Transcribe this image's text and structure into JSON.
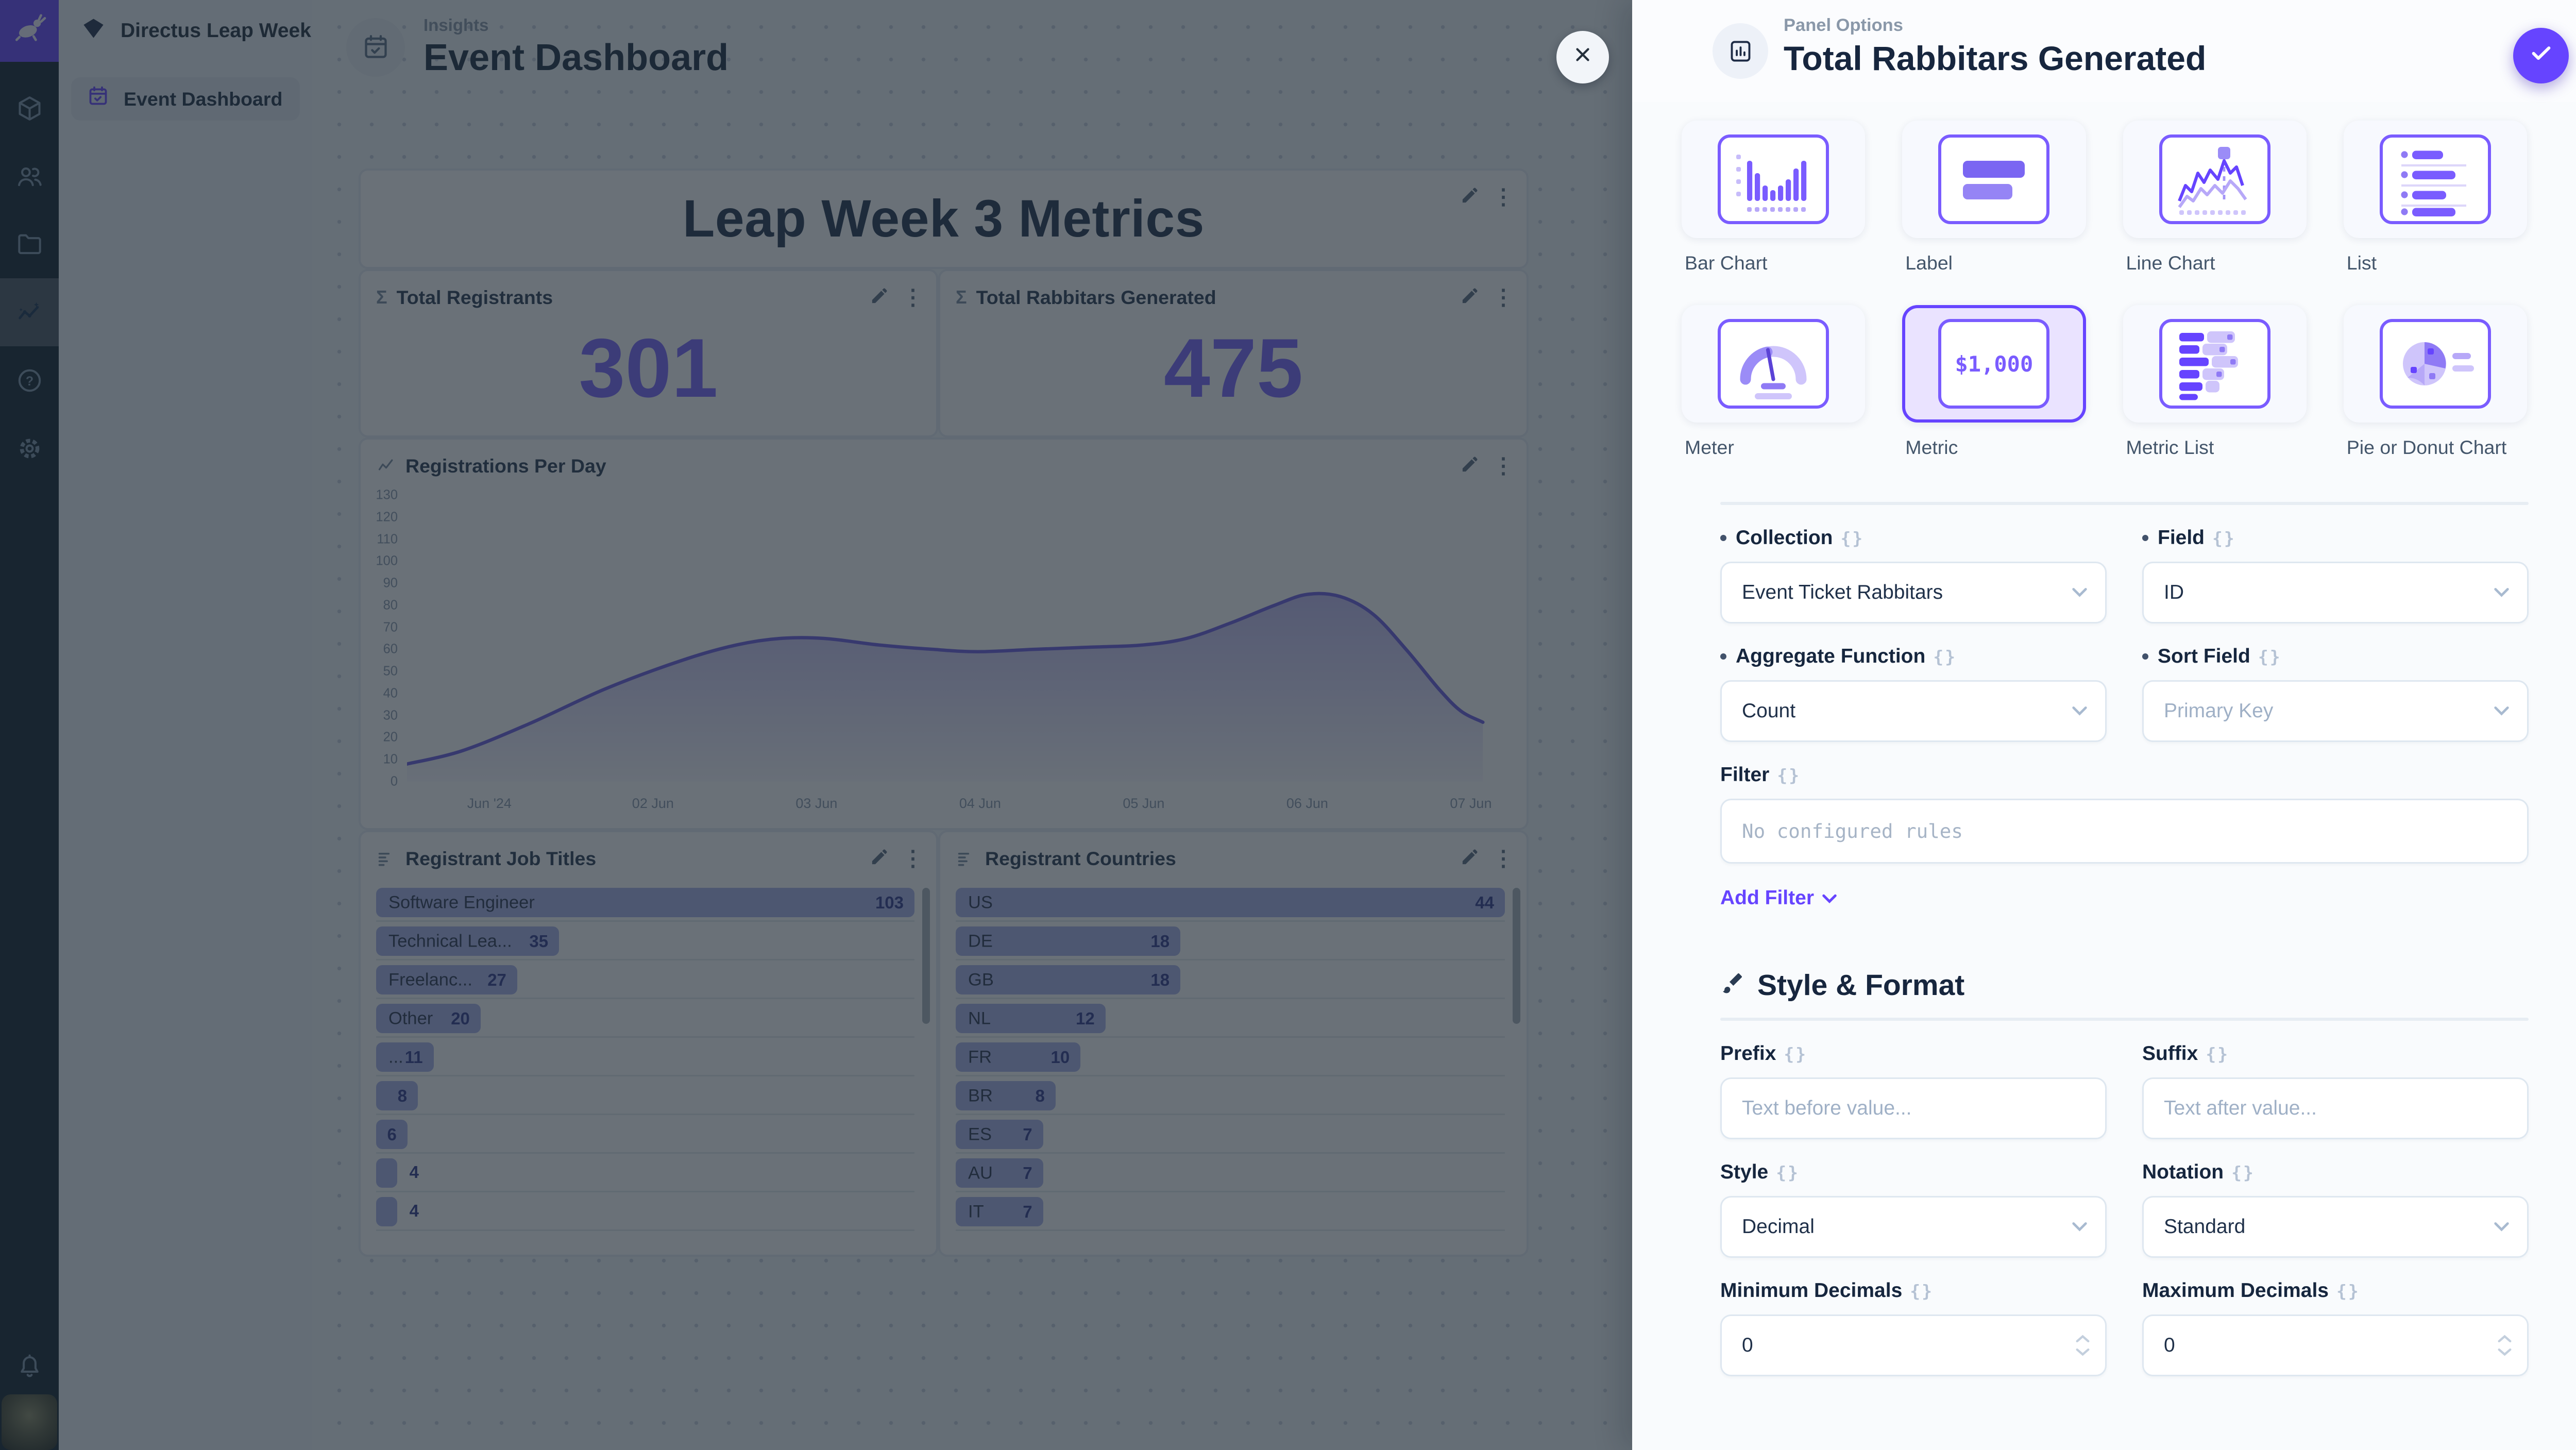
{
  "colors": {
    "primary": "#6644ff",
    "metric_text": "#7a63ff",
    "chart_line": "#6a5ce0",
    "bar_fill": "#aab3ea",
    "overlay": "rgba(29,40,50,0.66)"
  },
  "module_bar": {
    "logo_icon": "rabbit-logo",
    "items": [
      {
        "icon": "box"
      },
      {
        "icon": "users"
      },
      {
        "icon": "folder"
      },
      {
        "icon": "insights",
        "active": true
      },
      {
        "icon": "help"
      },
      {
        "icon": "settings"
      }
    ],
    "bottom": [
      {
        "icon": "bell"
      },
      {
        "icon": "avatar"
      }
    ]
  },
  "nav": {
    "project_name": "Directus Leap Week",
    "items": [
      {
        "label": "Event Dashboard",
        "icon": "calendar-check",
        "active": true
      }
    ]
  },
  "header": {
    "breadcrumb": "Insights",
    "title": "Event Dashboard"
  },
  "board": {
    "title_panel": {
      "text": "Leap Week 3 Metrics"
    },
    "metric_panels": [
      {
        "label": "Total Registrants",
        "value": "301"
      },
      {
        "label": "Total Rabbitars Generated",
        "value": "475"
      }
    ],
    "line_panel": {
      "label": "Registrations Per Day"
    },
    "job_panel": {
      "label": "Registrant Job Titles"
    },
    "country_panel": {
      "label": "Registrant Countries"
    }
  },
  "drawer": {
    "kicker": "Panel Options",
    "title": "Total Rabbitars Generated",
    "tiles": [
      {
        "label": "Bar Chart",
        "icon": "bar-chart-tile"
      },
      {
        "label": "Label",
        "icon": "label-tile"
      },
      {
        "label": "Line Chart",
        "icon": "line-chart-tile"
      },
      {
        "label": "List",
        "icon": "list-tile"
      },
      {
        "label": "Meter",
        "icon": "meter-tile"
      },
      {
        "label": "Metric",
        "icon": "metric-tile",
        "selected": true,
        "glyph": "$1,000"
      },
      {
        "label": "Metric List",
        "icon": "metric-list-tile"
      },
      {
        "label": "Pie or Donut Chart",
        "icon": "pie-tile"
      }
    ],
    "fields": {
      "collection": {
        "label": "Collection",
        "required": true,
        "value": "Event Ticket Rabbitars"
      },
      "field": {
        "label": "Field",
        "required": true,
        "value": "ID"
      },
      "aggregate": {
        "label": "Aggregate Function",
        "required": true,
        "value": "Count"
      },
      "sort": {
        "label": "Sort Field",
        "required": true,
        "placeholder": "Primary Key"
      },
      "filter": {
        "label": "Filter",
        "empty_text": "No configured rules",
        "add_label": "Add Filter"
      }
    },
    "style_format": {
      "heading": "Style & Format",
      "prefix": {
        "label": "Prefix",
        "placeholder": "Text before value..."
      },
      "suffix": {
        "label": "Suffix",
        "placeholder": "Text after value..."
      },
      "style": {
        "label": "Style",
        "value": "Decimal"
      },
      "notation": {
        "label": "Notation",
        "value": "Standard"
      },
      "min_decimals": {
        "label": "Minimum Decimals",
        "value": "0"
      },
      "max_decimals": {
        "label": "Maximum Decimals",
        "value": "0"
      }
    }
  },
  "chart_data": [
    {
      "type": "area",
      "title": "Registrations Per Day",
      "categories": [
        "Jun '24",
        "02 Jun",
        "03 Jun",
        "04 Jun",
        "05 Jun",
        "06 Jun",
        "07 Jun"
      ],
      "ylim": [
        0,
        130
      ],
      "ytick": 10,
      "grid": false,
      "legend": false,
      "points": [
        [
          0,
          8
        ],
        [
          0.05,
          14
        ],
        [
          0.11,
          26
        ],
        [
          0.18,
          42
        ],
        [
          0.25,
          55
        ],
        [
          0.3,
          62
        ],
        [
          0.34,
          65
        ],
        [
          0.38,
          65
        ],
        [
          0.43,
          62
        ],
        [
          0.48,
          60
        ],
        [
          0.52,
          59
        ],
        [
          0.57,
          60
        ],
        [
          0.62,
          61
        ],
        [
          0.67,
          62
        ],
        [
          0.71,
          65
        ],
        [
          0.75,
          72
        ],
        [
          0.79,
          80
        ],
        [
          0.82,
          85
        ],
        [
          0.85,
          84
        ],
        [
          0.88,
          76
        ],
        [
          0.91,
          60
        ],
        [
          0.94,
          42
        ],
        [
          0.96,
          32
        ],
        [
          0.98,
          27
        ]
      ]
    },
    {
      "type": "bar",
      "title": "Registrant Job Titles",
      "orientation": "horizontal",
      "items": [
        {
          "label": "Software Engineer",
          "value": 103
        },
        {
          "label": "Technical Lea...",
          "value": 35
        },
        {
          "label": "Freelanc...",
          "value": 27
        },
        {
          "label": "Other",
          "value": 20
        },
        {
          "label": "...",
          "value": 11
        },
        {
          "label": "",
          "value": 8
        },
        {
          "label": "",
          "value": 6
        },
        {
          "label": "",
          "value": 4
        },
        {
          "label": "",
          "value": 4
        }
      ]
    },
    {
      "type": "bar",
      "title": "Registrant Countries",
      "orientation": "horizontal",
      "items": [
        {
          "label": "US",
          "value": 44
        },
        {
          "label": "DE",
          "value": 18
        },
        {
          "label": "GB",
          "value": 18
        },
        {
          "label": "NL",
          "value": 12
        },
        {
          "label": "FR",
          "value": 10
        },
        {
          "label": "BR",
          "value": 8
        },
        {
          "label": "ES",
          "value": 7
        },
        {
          "label": "AU",
          "value": 7
        },
        {
          "label": "IT",
          "value": 7
        }
      ]
    },
    {
      "type": "metric",
      "title": "Total Registrants",
      "value": 301
    },
    {
      "type": "metric",
      "title": "Total Rabbitars Generated",
      "value": 475
    }
  ]
}
